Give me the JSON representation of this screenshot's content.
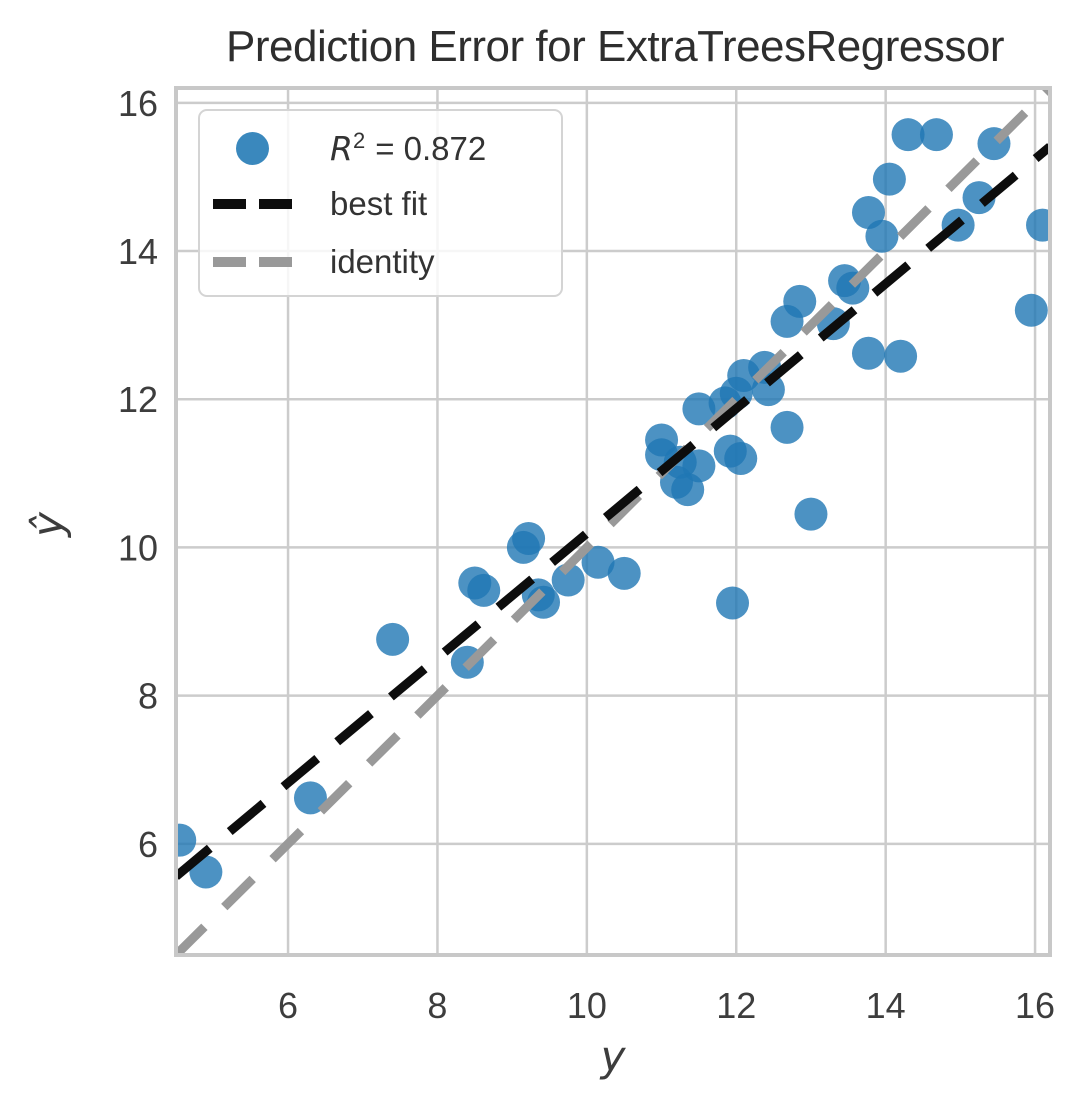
{
  "title": "Prediction Error for ExtraTreesRegressor",
  "axes": {
    "xlabel": "y",
    "ylabel": "ŷ",
    "xticks": [
      6,
      8,
      10,
      12,
      14,
      16
    ],
    "yticks": [
      6,
      8,
      10,
      12,
      14,
      16
    ]
  },
  "legend": {
    "r2": {
      "var": "R",
      "sup": "2",
      "rest": "= 0.872"
    },
    "best_fit_label": "best fit",
    "identity_label": "identity"
  },
  "colors": {
    "point": "#1f77b4",
    "point_opacity": 0.8,
    "best_fit_line": "#0d0d0d",
    "identity_line": "#999999",
    "grid": "#cccccc",
    "spine": "#c8c8c8",
    "tick_text": "#3d3d3d",
    "title_text": "#2e2e2e"
  },
  "chart_data": {
    "type": "scatter",
    "title": "Prediction Error for ExtraTreesRegressor",
    "xlabel": "y",
    "ylabel": "ŷ",
    "xlim": [
      4.5,
      16.2
    ],
    "ylim": [
      4.5,
      16.2
    ],
    "grid": true,
    "legend_position": "upper left",
    "series": [
      {
        "name": "R² = 0.872",
        "kind": "scatter",
        "marker_radius": 16.5,
        "points": [
          [
            4.55,
            6.05
          ],
          [
            4.9,
            5.62
          ],
          [
            6.3,
            6.62
          ],
          [
            7.4,
            8.76
          ],
          [
            8.4,
            8.45
          ],
          [
            8.5,
            9.52
          ],
          [
            8.62,
            9.42
          ],
          [
            9.15,
            10.0
          ],
          [
            9.22,
            10.12
          ],
          [
            9.35,
            9.36
          ],
          [
            9.42,
            9.26
          ],
          [
            9.75,
            9.56
          ],
          [
            10.15,
            9.8
          ],
          [
            10.5,
            9.65
          ],
          [
            11.95,
            9.25
          ],
          [
            13.0,
            10.45
          ],
          [
            11.0,
            11.45
          ],
          [
            11.0,
            11.25
          ],
          [
            11.25,
            11.15
          ],
          [
            11.5,
            11.1
          ],
          [
            11.2,
            10.88
          ],
          [
            11.35,
            10.78
          ],
          [
            11.5,
            11.87
          ],
          [
            11.85,
            11.95
          ],
          [
            12.0,
            12.08
          ],
          [
            12.1,
            12.32
          ],
          [
            12.38,
            12.43
          ],
          [
            12.43,
            12.13
          ],
          [
            11.92,
            11.3
          ],
          [
            12.06,
            11.2
          ],
          [
            12.68,
            11.62
          ],
          [
            12.68,
            13.05
          ],
          [
            12.85,
            13.32
          ],
          [
            13.3,
            13.02
          ],
          [
            13.45,
            13.6
          ],
          [
            13.56,
            13.5
          ],
          [
            13.77,
            12.62
          ],
          [
            14.2,
            12.58
          ],
          [
            13.77,
            14.52
          ],
          [
            13.95,
            14.2
          ],
          [
            14.05,
            14.97
          ],
          [
            14.3,
            15.57
          ],
          [
            14.68,
            15.57
          ],
          [
            15.45,
            15.45
          ],
          [
            15.25,
            14.72
          ],
          [
            14.97,
            14.35
          ],
          [
            16.1,
            14.35
          ],
          [
            15.95,
            13.2
          ]
        ]
      },
      {
        "name": "best fit",
        "kind": "line",
        "style": "dashed",
        "points": [
          [
            4.5,
            5.56
          ],
          [
            16.2,
            15.41
          ]
        ]
      },
      {
        "name": "identity",
        "kind": "line",
        "style": "dashed",
        "points": [
          [
            4.5,
            4.5
          ],
          [
            16.2,
            16.2
          ]
        ]
      }
    ]
  }
}
